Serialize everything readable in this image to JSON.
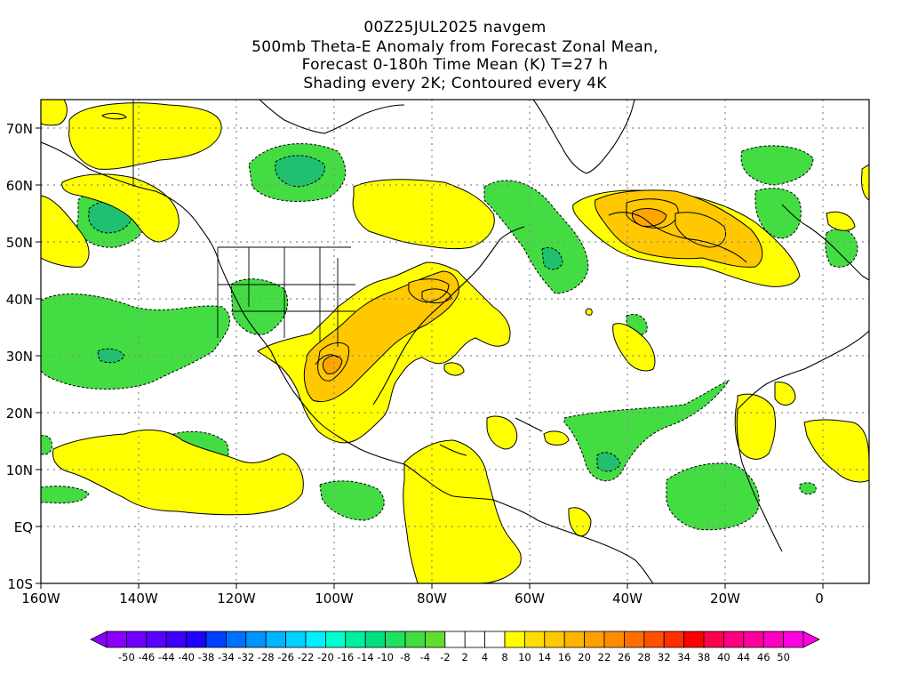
{
  "title": {
    "line1": "00Z25JUL2025 navgem",
    "line2": "500mb Theta-E Anomaly from Forecast Zonal Mean,",
    "line3": "Forecast 0-180h Time Mean (K) T=27 h",
    "line4": "Shading every 2K; Contoured every 4K"
  },
  "axes": {
    "lat_labels": [
      "70N",
      "60N",
      "50N",
      "40N",
      "30N",
      "20N",
      "10N",
      "EQ",
      "10S"
    ],
    "lon_labels": [
      "160W",
      "140W",
      "120W",
      "100W",
      "80W",
      "60W",
      "40W",
      "20W",
      "0"
    ]
  },
  "colorbar": {
    "labels": [
      "-50",
      "-46",
      "-44",
      "-40",
      "-38",
      "-34",
      "-32",
      "-28",
      "-26",
      "-22",
      "-20",
      "-16",
      "-14",
      "-10",
      "-8",
      "-4",
      "-2",
      "2",
      "4",
      "8",
      "10",
      "14",
      "16",
      "20",
      "22",
      "26",
      "28",
      "32",
      "34",
      "38",
      "40",
      "44",
      "46",
      "50"
    ],
    "colors": [
      "#8a00ff",
      "#7000ff",
      "#5a00ff",
      "#3c00ff",
      "#1e00ff",
      "#0040ff",
      "#0070ff",
      "#0094ff",
      "#00b4ff",
      "#00d2ff",
      "#00f0ff",
      "#00ffd0",
      "#00f0a0",
      "#00e080",
      "#20e060",
      "#40dd40",
      "#60dd30",
      "#ffffff",
      "#ffffff",
      "#ffffff",
      "#ffff00",
      "#ffdd00",
      "#ffc800",
      "#ffb400",
      "#ffa000",
      "#ff8c00",
      "#ff7000",
      "#ff5000",
      "#ff3000",
      "#ff0000",
      "#ff0050",
      "#ff0080",
      "#ff00a0",
      "#ff00c0",
      "#ff00e0"
    ]
  }
}
